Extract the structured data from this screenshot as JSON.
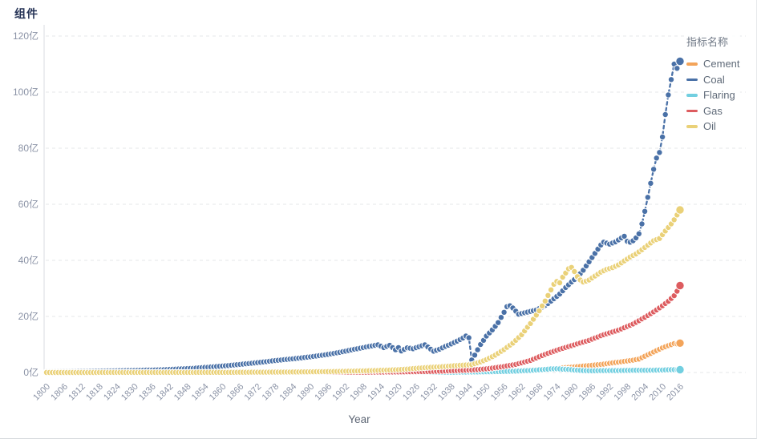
{
  "header": {
    "title": "组件"
  },
  "chart_data": {
    "type": "scatter",
    "title": "组件",
    "xlabel": "Year",
    "legend_title": "指标名称",
    "y_unit": "亿",
    "ylim": [
      0,
      120
    ],
    "y_ticks": [
      {
        "value": 0,
        "label": "0亿"
      },
      {
        "value": 20,
        "label": "20亿"
      },
      {
        "value": 40,
        "label": "40亿"
      },
      {
        "value": 60,
        "label": "60亿"
      },
      {
        "value": 80,
        "label": "80亿"
      },
      {
        "value": 100,
        "label": "100亿"
      },
      {
        "value": 120,
        "label": "120亿"
      }
    ],
    "x_start": 1800,
    "x_end": 2016,
    "x_ticks": [
      1800,
      1806,
      1812,
      1818,
      1824,
      1830,
      1836,
      1842,
      1848,
      1854,
      1860,
      1866,
      1872,
      1878,
      1884,
      1890,
      1896,
      1902,
      1908,
      1914,
      1920,
      1926,
      1932,
      1938,
      1944,
      1950,
      1956,
      1962,
      1968,
      1974,
      1980,
      1986,
      1992,
      1998,
      2004,
      2010,
      2016
    ],
    "grid": "dashed-horizontal",
    "legend_position": "right",
    "series": [
      {
        "name": "Cement",
        "color": "#f3a45a",
        "points": [
          [
            1800,
            0
          ],
          [
            1890,
            0.05
          ],
          [
            1900,
            0.1
          ],
          [
            1920,
            0.15
          ],
          [
            1930,
            0.2
          ],
          [
            1940,
            0.3
          ],
          [
            1950,
            0.4
          ],
          [
            1955,
            0.55
          ],
          [
            1960,
            0.7
          ],
          [
            1965,
            0.9
          ],
          [
            1970,
            1.2
          ],
          [
            1975,
            1.6
          ],
          [
            1980,
            2.0
          ],
          [
            1985,
            2.5
          ],
          [
            1990,
            3.0
          ],
          [
            1995,
            3.7
          ],
          [
            2000,
            4.4
          ],
          [
            2002,
            4.8
          ],
          [
            2004,
            5.8
          ],
          [
            2006,
            6.8
          ],
          [
            2008,
            7.8
          ],
          [
            2010,
            8.8
          ],
          [
            2012,
            9.6
          ],
          [
            2014,
            10.3
          ],
          [
            2015,
            10.2
          ],
          [
            2016,
            10.5
          ]
        ]
      },
      {
        "name": "Coal",
        "color": "#4a71a7",
        "points": [
          [
            1800,
            0.3
          ],
          [
            1810,
            0.4
          ],
          [
            1820,
            0.55
          ],
          [
            1830,
            0.75
          ],
          [
            1840,
            1.0
          ],
          [
            1850,
            1.5
          ],
          [
            1855,
            1.9
          ],
          [
            1860,
            2.3
          ],
          [
            1865,
            2.8
          ],
          [
            1870,
            3.3
          ],
          [
            1875,
            3.9
          ],
          [
            1880,
            4.5
          ],
          [
            1885,
            5.0
          ],
          [
            1890,
            5.6
          ],
          [
            1895,
            6.3
          ],
          [
            1900,
            7.2
          ],
          [
            1905,
            8.3
          ],
          [
            1910,
            9.3
          ],
          [
            1913,
            9.9
          ],
          [
            1915,
            8.9
          ],
          [
            1917,
            9.7
          ],
          [
            1919,
            8.1
          ],
          [
            1920,
            8.9
          ],
          [
            1921,
            7.7
          ],
          [
            1923,
            8.8
          ],
          [
            1925,
            8.5
          ],
          [
            1927,
            9.2
          ],
          [
            1929,
            9.9
          ],
          [
            1931,
            8.3
          ],
          [
            1932,
            7.6
          ],
          [
            1934,
            8.3
          ],
          [
            1936,
            9.3
          ],
          [
            1938,
            10.2
          ],
          [
            1940,
            11.2
          ],
          [
            1942,
            12.3
          ],
          [
            1943,
            13.0
          ],
          [
            1944,
            12.4
          ],
          [
            1945,
            4.5
          ],
          [
            1946,
            6.2
          ],
          [
            1948,
            10.0
          ],
          [
            1950,
            13.0
          ],
          [
            1952,
            15.2
          ],
          [
            1954,
            17.8
          ],
          [
            1956,
            21.5
          ],
          [
            1957,
            23.5
          ],
          [
            1958,
            23.8
          ],
          [
            1959,
            23.0
          ],
          [
            1961,
            20.8
          ],
          [
            1963,
            21.3
          ],
          [
            1965,
            21.8
          ],
          [
            1967,
            22.3
          ],
          [
            1969,
            23.3
          ],
          [
            1971,
            24.6
          ],
          [
            1973,
            26.3
          ],
          [
            1975,
            28.0
          ],
          [
            1977,
            30.3
          ],
          [
            1979,
            32.3
          ],
          [
            1981,
            34.0
          ],
          [
            1983,
            36.5
          ],
          [
            1985,
            39.5
          ],
          [
            1987,
            42.5
          ],
          [
            1989,
            45.5
          ],
          [
            1990,
            46.5
          ],
          [
            1992,
            45.8
          ],
          [
            1994,
            46.6
          ],
          [
            1996,
            48.0
          ],
          [
            1997,
            48.6
          ],
          [
            1998,
            46.8
          ],
          [
            1999,
            46.5
          ],
          [
            2000,
            47.0
          ],
          [
            2001,
            48.0
          ],
          [
            2002,
            49.5
          ],
          [
            2003,
            53.0
          ],
          [
            2004,
            57.5
          ],
          [
            2005,
            62.5
          ],
          [
            2006,
            67.5
          ],
          [
            2007,
            72.5
          ],
          [
            2008,
            76.5
          ],
          [
            2009,
            78.5
          ],
          [
            2010,
            84.0
          ],
          [
            2011,
            92.0
          ],
          [
            2012,
            99.0
          ],
          [
            2013,
            104.5
          ],
          [
            2014,
            110.0
          ],
          [
            2015,
            108.5
          ],
          [
            2016,
            111.0
          ]
        ]
      },
      {
        "name": "Flaring",
        "color": "#72cfe0",
        "points": [
          [
            1800,
            0
          ],
          [
            1930,
            0.05
          ],
          [
            1940,
            0.1
          ],
          [
            1950,
            0.25
          ],
          [
            1955,
            0.35
          ],
          [
            1960,
            0.5
          ],
          [
            1965,
            0.75
          ],
          [
            1970,
            1.1
          ],
          [
            1972,
            1.3
          ],
          [
            1974,
            1.35
          ],
          [
            1976,
            1.2
          ],
          [
            1978,
            1.1
          ],
          [
            1980,
            0.9
          ],
          [
            1983,
            0.7
          ],
          [
            1986,
            0.6
          ],
          [
            1990,
            0.7
          ],
          [
            1995,
            0.7
          ],
          [
            2000,
            0.8
          ],
          [
            2005,
            0.8
          ],
          [
            2010,
            0.9
          ],
          [
            2013,
            1.0
          ],
          [
            2016,
            1.0
          ]
        ]
      },
      {
        "name": "Gas",
        "color": "#dd5c5f",
        "points": [
          [
            1800,
            0
          ],
          [
            1900,
            0.05
          ],
          [
            1910,
            0.1
          ],
          [
            1920,
            0.2
          ],
          [
            1930,
            0.35
          ],
          [
            1935,
            0.5
          ],
          [
            1940,
            0.7
          ],
          [
            1945,
            0.9
          ],
          [
            1950,
            1.3
          ],
          [
            1955,
            2.0
          ],
          [
            1960,
            2.9
          ],
          [
            1965,
            4.3
          ],
          [
            1970,
            6.5
          ],
          [
            1975,
            8.3
          ],
          [
            1980,
            9.9
          ],
          [
            1985,
            11.5
          ],
          [
            1990,
            13.5
          ],
          [
            1995,
            15.1
          ],
          [
            2000,
            17.3
          ],
          [
            2005,
            20.3
          ],
          [
            2008,
            22.3
          ],
          [
            2010,
            23.8
          ],
          [
            2012,
            25.4
          ],
          [
            2014,
            27.4
          ],
          [
            2015,
            29.0
          ],
          [
            2016,
            31.0
          ]
        ]
      },
      {
        "name": "Oil",
        "color": "#ead178",
        "points": [
          [
            1800,
            0
          ],
          [
            1860,
            0.05
          ],
          [
            1880,
            0.15
          ],
          [
            1890,
            0.25
          ],
          [
            1900,
            0.4
          ],
          [
            1910,
            0.65
          ],
          [
            1920,
            1.0
          ],
          [
            1925,
            1.4
          ],
          [
            1930,
            1.8
          ],
          [
            1935,
            2.1
          ],
          [
            1940,
            2.5
          ],
          [
            1945,
            2.8
          ],
          [
            1948,
            3.8
          ],
          [
            1950,
            4.6
          ],
          [
            1953,
            6.2
          ],
          [
            1956,
            8.2
          ],
          [
            1959,
            10.5
          ],
          [
            1962,
            13.5
          ],
          [
            1965,
            17.5
          ],
          [
            1968,
            22.0
          ],
          [
            1970,
            25.5
          ],
          [
            1972,
            29.5
          ],
          [
            1973,
            31.5
          ],
          [
            1974,
            32.5
          ],
          [
            1975,
            32.0
          ],
          [
            1976,
            34.0
          ],
          [
            1977,
            35.5
          ],
          [
            1978,
            37.0
          ],
          [
            1979,
            37.5
          ],
          [
            1980,
            36.0
          ],
          [
            1981,
            34.2
          ],
          [
            1982,
            33.0
          ],
          [
            1983,
            32.3
          ],
          [
            1984,
            32.6
          ],
          [
            1985,
            33.0
          ],
          [
            1987,
            34.4
          ],
          [
            1989,
            35.8
          ],
          [
            1991,
            36.8
          ],
          [
            1993,
            37.4
          ],
          [
            1995,
            38.4
          ],
          [
            1997,
            39.8
          ],
          [
            1999,
            41.2
          ],
          [
            2001,
            42.3
          ],
          [
            2003,
            43.8
          ],
          [
            2005,
            45.4
          ],
          [
            2007,
            47.0
          ],
          [
            2009,
            47.8
          ],
          [
            2011,
            50.5
          ],
          [
            2013,
            53.0
          ],
          [
            2014,
            54.5
          ],
          [
            2015,
            56.2
          ],
          [
            2016,
            58.0
          ]
        ]
      }
    ],
    "style_colors": {
      "title_text": "#243255",
      "axis_tick_text": "#8b93a6",
      "legend_text": "#606b79",
      "gridline": "#e5e7ea",
      "axis_line": "#d8dbe0"
    }
  }
}
